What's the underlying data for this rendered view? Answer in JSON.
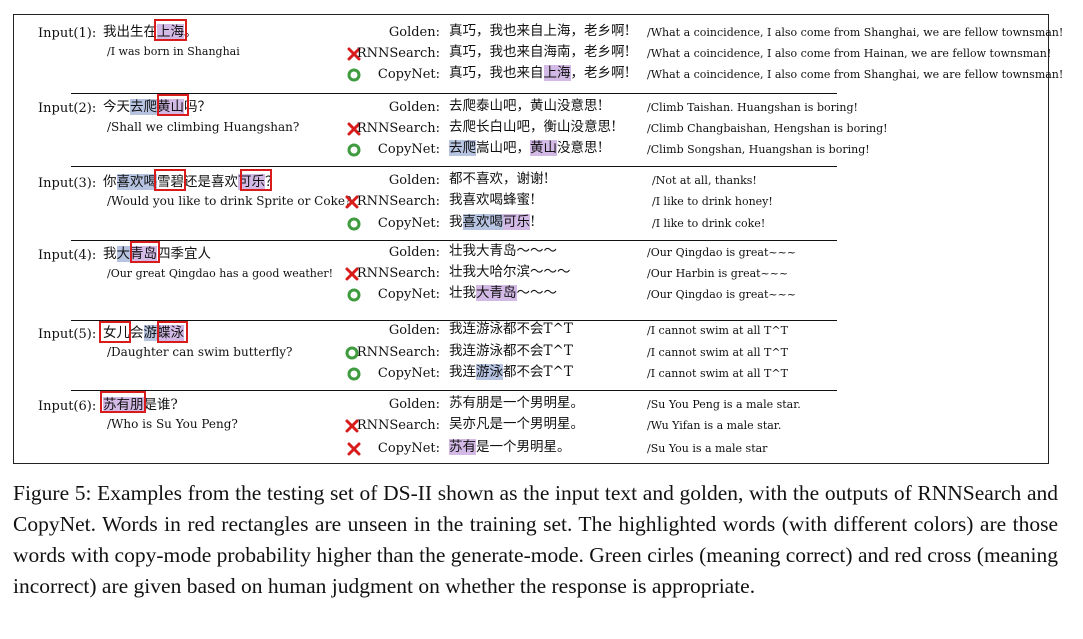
{
  "examples": [
    {
      "input_label": "Input(1):",
      "input_zh": [
        "我出生在",
        {
          "t": "上海",
          "h": "p"
        },
        "。"
      ],
      "input_en": "/I was born in Shanghai",
      "rows": [
        {
          "mark": "",
          "label": "Golden:",
          "zh": [
            "真巧，我也来自上海，老乡啊!"
          ],
          "trans": "/What a coincidence, I also come from Shanghai, we are fellow townsman!"
        },
        {
          "mark": "cross",
          "label": "RNNSearch:",
          "zh": [
            "真巧，我也来自海南，老乡啊!"
          ],
          "trans": "/What a coincidence, I also come from Hainan, we are fellow townsman!"
        },
        {
          "mark": "circle",
          "label": "CopyNet:",
          "zh": [
            "真巧，我也来自",
            {
              "t": "上海",
              "h": "p"
            },
            "，老乡啊!"
          ],
          "trans": "/What a coincidence, I also come from Shanghai, we are fellow townsman!"
        }
      ]
    },
    {
      "input_label": "Input(2):",
      "input_zh": [
        "今天",
        {
          "t": "去爬",
          "h": "b"
        },
        {
          "t": "黄山",
          "h": "p"
        },
        "吗？"
      ],
      "input_en": "/Shall we climbing Huangshan?",
      "rows": [
        {
          "mark": "",
          "label": "Golden:",
          "zh": [
            "去爬泰山吧，黄山没意思!"
          ],
          "trans": "/Climb Taishan. Huangshan is boring!"
        },
        {
          "mark": "cross",
          "label": "RNNSearch:",
          "zh": [
            "去爬长白山吧，衡山没意思!"
          ],
          "trans": "/Climb Changbaishan, Hengshan is boring!"
        },
        {
          "mark": "circle",
          "label": "CopyNet:",
          "zh": [
            {
              "t": "去爬",
              "h": "b"
            },
            "嵩山吧，",
            {
              "t": "黄山",
              "h": "p"
            },
            "没意思!"
          ],
          "trans": "/Climb Songshan, Huangshan is boring!"
        }
      ]
    },
    {
      "input_label": "Input(3):",
      "input_zh": [
        "你",
        {
          "t": "喜欢喝",
          "h": "b"
        },
        "雪碧还是喜欢",
        {
          "t": "可乐",
          "h": "p"
        },
        "？"
      ],
      "input_en": "/Would you like to drink Sprite or Coke?",
      "rows": [
        {
          "mark": "",
          "label": "Golden:",
          "zh": [
            "都不喜欢，谢谢!"
          ],
          "trans": "/Not at all, thanks!"
        },
        {
          "mark": "cross",
          "label": "RNNSearch:",
          "zh": [
            "我喜欢喝蜂蜜!"
          ],
          "trans": "/I like to drink honey!"
        },
        {
          "mark": "circle",
          "label": "CopyNet:",
          "zh": [
            "我",
            {
              "t": "喜欢喝",
              "h": "b"
            },
            {
              "t": "可乐",
              "h": "p"
            },
            "!"
          ],
          "trans": "/I like to drink coke!"
        }
      ]
    },
    {
      "input_label": "Input(4):",
      "input_zh": [
        "我",
        {
          "t": "大",
          "h": "b"
        },
        {
          "t": "青岛",
          "h": "p"
        },
        "四季宜人"
      ],
      "input_en": "/Our great Qingdao has a good weather!",
      "rows": [
        {
          "mark": "",
          "label": "Golden:",
          "zh": [
            "壮我大青岛～～～"
          ],
          "trans": "/Our Qingdao is great~~~"
        },
        {
          "mark": "cross",
          "label": "RNNSearch:",
          "zh": [
            "壮我大哈尔滨～～～"
          ],
          "trans": "/Our Harbin is great~~~"
        },
        {
          "mark": "circle",
          "label": "CopyNet:",
          "zh": [
            "壮我",
            {
              "t": "大青岛",
              "h": "p"
            },
            "～～～"
          ],
          "trans": "/Our Qingdao is great~~~"
        }
      ]
    },
    {
      "input_label": "Input(5):",
      "input_zh": [
        {
          "t": "女儿",
          "h": ""
        },
        "会",
        {
          "t": "游",
          "h": "b"
        },
        {
          "t": "蝶泳",
          "h": "p"
        }
      ],
      "input_en": "/Daughter can swim butterfly?",
      "rows": [
        {
          "mark": "",
          "label": "Golden:",
          "zh": [
            "我连游泳都不会T^T"
          ],
          "trans": "/I cannot swim at all T^T"
        },
        {
          "mark": "circle",
          "label": "RNNSearch:",
          "zh": [
            "我连游泳都不会T^T"
          ],
          "trans": "/I cannot swim at all T^T"
        },
        {
          "mark": "circle",
          "label": "CopyNet:",
          "zh": [
            "我连",
            {
              "t": "游泳",
              "h": "b"
            },
            "都不会T^T"
          ],
          "trans": "/I cannot swim at all T^T"
        }
      ]
    },
    {
      "input_label": "Input(6):",
      "input_zh": [
        {
          "t": "苏有朋",
          "h": "p"
        },
        "是谁?"
      ],
      "input_en": "/Who is Su You Peng?",
      "rows": [
        {
          "mark": "",
          "label": "Golden:",
          "zh": [
            "苏有朋是一个男明星。"
          ],
          "trans": "/Su You Peng is a male star."
        },
        {
          "mark": "cross",
          "label": "RNNSearch:",
          "zh": [
            "吴亦凡是一个男明星。"
          ],
          "trans": "/Wu Yifan is a male star."
        },
        {
          "mark": "cross",
          "label": "CopyNet:",
          "zh": [
            {
              "t": "苏有",
              "h": "p"
            },
            "是一个男明星。"
          ],
          "trans": "/Su You is a male star"
        }
      ]
    }
  ],
  "caption": "Figure 5:  Examples from the testing set of DS-II shown as the input text and golden, with the outputs of RNNSearch and CopyNet.  Words in red rectangles are unseen in the training set.  The highlighted words (with different colors) are those words with copy-mode probability higher than the generate-mode. Green cirles (meaning correct) and red cross (meaning incorrect) are given based on human judgment on whether the response is appropriate.",
  "colors": {
    "highlight_blue": "#b6c4e2",
    "highlight_purple": "#d3b9e6",
    "unseen_box": "#d81b1b",
    "correct_circle": "#3e9b3e",
    "incorrect_cross": "#d81b1b"
  }
}
